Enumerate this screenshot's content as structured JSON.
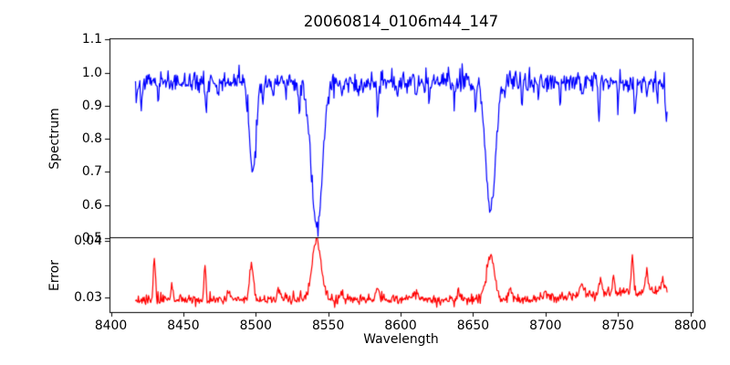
{
  "chart_data": {
    "type": "line",
    "title": "20060814_0106m44_147",
    "xlabel": "Wavelength",
    "x_range": [
      8417,
      8784
    ],
    "x_step": 0.5,
    "xlim": [
      8399,
      8801
    ],
    "xticks": [
      {
        "value": 8400,
        "label": "8400"
      },
      {
        "value": 8450,
        "label": "8450"
      },
      {
        "value": 8500,
        "label": "8500"
      },
      {
        "value": 8550,
        "label": "8550"
      },
      {
        "value": 8600,
        "label": "8600"
      },
      {
        "value": 8650,
        "label": "8650"
      },
      {
        "value": 8700,
        "label": "8700"
      },
      {
        "value": 8750,
        "label": "8750"
      },
      {
        "value": 8800,
        "label": "8800"
      }
    ],
    "grid": false,
    "legend": false,
    "seed": 7,
    "panels": [
      {
        "name": "spectrum",
        "ylabel": "Spectrum",
        "ylim": [
          0.495,
          1.105
        ],
        "yticks": [
          {
            "value": 1.1,
            "label": "1.1"
          },
          {
            "value": 1.0,
            "label": "1.0"
          },
          {
            "value": 0.9,
            "label": "0.9"
          },
          {
            "value": 0.8,
            "label": "0.8"
          },
          {
            "value": 0.7,
            "label": "0.7"
          },
          {
            "value": 0.6,
            "label": "0.6"
          },
          {
            "value": 0.5,
            "label": "0.5"
          }
        ],
        "line_color": "#0000ff",
        "continuum": 0.972,
        "noise_sigma": 0.0155,
        "down_spike_prob": 0.035,
        "down_spike_max": 0.035,
        "absorption_lines": [
          {
            "center": 8498.0,
            "bottom": 0.695,
            "depth": 0.275,
            "sigma": 2.3
          },
          {
            "center": 8542.1,
            "bottom": 0.53,
            "depth": 0.44,
            "sigma": 3.8
          },
          {
            "center": 8662.1,
            "bottom": 0.575,
            "depth": 0.395,
            "sigma": 3.2
          }
        ],
        "minor_dips": [
          {
            "center": 8417.5,
            "depth": 0.05,
            "sigma": 0.8
          },
          {
            "center": 8421.0,
            "depth": 0.08,
            "sigma": 0.6
          },
          {
            "center": 8433.0,
            "depth": 0.05,
            "sigma": 0.5
          },
          {
            "center": 8466.0,
            "depth": 0.1,
            "sigma": 0.6
          },
          {
            "center": 8474.0,
            "depth": 0.04,
            "sigma": 0.5
          },
          {
            "center": 8505.0,
            "depth": 0.062,
            "sigma": 0.6
          },
          {
            "center": 8512.0,
            "depth": 0.05,
            "sigma": 0.5
          },
          {
            "center": 8521.0,
            "depth": 0.04,
            "sigma": 0.5
          },
          {
            "center": 8530.0,
            "depth": 0.078,
            "sigma": 0.6
          },
          {
            "center": 8560.0,
            "depth": 0.045,
            "sigma": 0.5
          },
          {
            "center": 8571.0,
            "depth": 0.04,
            "sigma": 0.5
          },
          {
            "center": 8584.0,
            "depth": 0.088,
            "sigma": 0.6
          },
          {
            "center": 8598.0,
            "depth": 0.04,
            "sigma": 0.5
          },
          {
            "center": 8611.0,
            "depth": 0.045,
            "sigma": 0.5
          },
          {
            "center": 8620.0,
            "depth": 0.05,
            "sigma": 0.5
          },
          {
            "center": 8637.0,
            "depth": 0.058,
            "sigma": 0.6
          },
          {
            "center": 8652.0,
            "depth": 0.055,
            "sigma": 0.5
          },
          {
            "center": 8672.0,
            "depth": 0.042,
            "sigma": 0.5
          },
          {
            "center": 8684.0,
            "depth": 0.05,
            "sigma": 0.5
          },
          {
            "center": 8695.0,
            "depth": 0.06,
            "sigma": 0.6
          },
          {
            "center": 8710.0,
            "depth": 0.045,
            "sigma": 0.5
          },
          {
            "center": 8726.0,
            "depth": 0.042,
            "sigma": 0.5
          },
          {
            "center": 8737.0,
            "depth": 0.1,
            "sigma": 0.6
          },
          {
            "center": 8750.0,
            "depth": 0.05,
            "sigma": 0.5
          },
          {
            "center": 8762.0,
            "depth": 0.085,
            "sigma": 0.6
          },
          {
            "center": 8770.0,
            "depth": 0.045,
            "sigma": 0.5
          },
          {
            "center": 8777.0,
            "depth": 0.06,
            "sigma": 0.5
          },
          {
            "center": 8783.5,
            "depth": 0.095,
            "sigma": 0.8
          }
        ]
      },
      {
        "name": "error",
        "ylabel": "Error",
        "ylim": [
          0.0274,
          0.0406
        ],
        "yticks": [
          {
            "value": 0.04,
            "label": "0.04"
          },
          {
            "value": 0.03,
            "label": "0.03"
          }
        ],
        "line_color": "#ff0000",
        "baseline": 0.0296,
        "noise_sigma": 0.00045,
        "up_spike_prob": 0.03,
        "up_spike_max": 0.0012,
        "peaks": [
          {
            "center": 8430,
            "amp": 0.0078,
            "sigma": 0.7
          },
          {
            "center": 8442,
            "amp": 0.0022,
            "sigma": 0.7
          },
          {
            "center": 8465,
            "amp": 0.0062,
            "sigma": 0.7
          },
          {
            "center": 8481,
            "amp": 0.0016,
            "sigma": 0.8
          },
          {
            "center": 8497,
            "amp": 0.0062,
            "sigma": 1.3
          },
          {
            "center": 8516,
            "amp": 0.0018,
            "sigma": 1.2
          },
          {
            "center": 8542,
            "amp": 0.0106,
            "sigma": 3.0
          },
          {
            "center": 8559,
            "amp": 0.0016,
            "sigma": 1.0
          },
          {
            "center": 8584,
            "amp": 0.0018,
            "sigma": 0.9
          },
          {
            "center": 8610,
            "amp": 0.0013,
            "sigma": 1.5
          },
          {
            "center": 8640,
            "amp": 0.0013,
            "sigma": 1.0
          },
          {
            "center": 8662,
            "amp": 0.0078,
            "sigma": 2.8
          },
          {
            "center": 8676,
            "amp": 0.002,
            "sigma": 0.8
          },
          {
            "center": 8700,
            "amp": 0.0013,
            "sigma": 1.0
          },
          {
            "center": 8725,
            "amp": 0.0018,
            "sigma": 1.2
          },
          {
            "center": 8738,
            "amp": 0.0025,
            "sigma": 0.9
          },
          {
            "center": 8747,
            "amp": 0.0028,
            "sigma": 0.8
          },
          {
            "center": 8760,
            "amp": 0.007,
            "sigma": 0.7
          },
          {
            "center": 8770,
            "amp": 0.0032,
            "sigma": 0.9
          },
          {
            "center": 8781,
            "amp": 0.0022,
            "sigma": 0.8
          }
        ],
        "right_rise": {
          "start": 8690,
          "end": 8784,
          "amount": 0.0018
        }
      }
    ],
    "colors": {
      "axis": "#000000",
      "background": "#ffffff"
    }
  }
}
